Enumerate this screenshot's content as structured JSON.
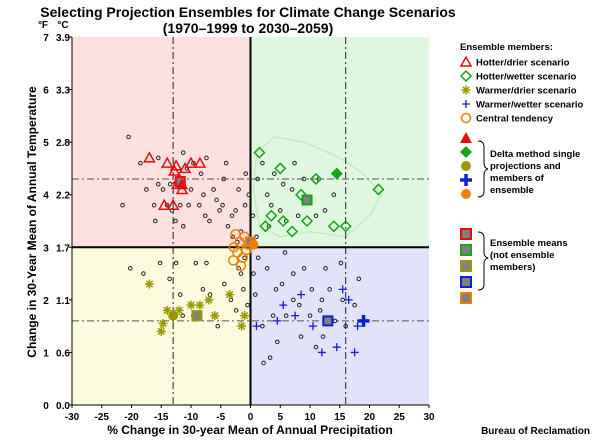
{
  "chart_data": {
    "type": "scatter",
    "title_line1": "Selecting Projection Ensembles for Climate Change Scenarios",
    "title_line2": "(1970–1999 to 2030–2059)",
    "xlabel": "% Change in 30-year Mean of Annual Precipitation",
    "ylabel": "Change in 30-Year Mean of Annual Temperature",
    "unit_f": "°F",
    "unit_c": "°C",
    "xlim": [
      -30,
      30
    ],
    "ylim_f": [
      0,
      7
    ],
    "ylim_c": [
      0.0,
      3.9
    ],
    "x_ticks": [
      -30,
      -25,
      -20,
      -15,
      -10,
      -5,
      0,
      5,
      10,
      15,
      20,
      25,
      30
    ],
    "y_ticks_f": [
      {
        "v": 0,
        "label": "0"
      },
      {
        "v": 1,
        "label": "1"
      },
      {
        "v": 2,
        "label": "2"
      },
      {
        "v": 3,
        "label": "3"
      },
      {
        "v": 4,
        "label": "4"
      },
      {
        "v": 5,
        "label": "5"
      },
      {
        "v": 6,
        "label": "6"
      },
      {
        "v": 7,
        "label": "7"
      }
    ],
    "y_ticks_c": [
      {
        "v": 0,
        "label": "0.0"
      },
      {
        "v": 1,
        "label": "0.6"
      },
      {
        "v": 2,
        "label": "1.1"
      },
      {
        "v": 3,
        "label": "1.7"
      },
      {
        "v": 4,
        "label": "2.2"
      },
      {
        "v": 5,
        "label": "2.8"
      },
      {
        "v": 6,
        "label": "3.3"
      },
      {
        "v": 7,
        "label": "3.9"
      }
    ],
    "center": {
      "x": 0,
      "y": 3
    },
    "percentile_lines": {
      "x": [
        -13,
        16
      ],
      "y": [
        1.6,
        4.3
      ]
    },
    "quadrant_colors": {
      "hotter_drier": "#fde0e0",
      "hotter_wetter": "#e0f7e0",
      "warmer_drier": "#fdfbde",
      "warmer_wetter": "#e2e2fb",
      "cloud_outline": "#bfeabf"
    },
    "legend": {
      "header": "Ensemble members:",
      "items": [
        {
          "label": "Hotter/drier scenario",
          "marker": "triangle-open",
          "color": "#e01010"
        },
        {
          "label": "Hotter/wetter scenario",
          "marker": "diamond-open",
          "color": "#18a418"
        },
        {
          "label": "Warmer/drier scenario",
          "marker": "star",
          "color": "#9a9a00"
        },
        {
          "label": "Warmer/wetter scenario",
          "marker": "plus",
          "color": "#1020d0"
        },
        {
          "label": "Central tendency",
          "marker": "circle-open",
          "color": "#f08000"
        }
      ],
      "delta_label_lines": [
        "Delta method single",
        "projections and",
        "members of",
        "ensemble"
      ],
      "means_label_lines": [
        "Ensemble means",
        "(not ensemble",
        " members)"
      ]
    },
    "background_points": [
      [
        -20.5,
        5.1
      ],
      [
        -18.5,
        4.6
      ],
      [
        -15.5,
        4.7
      ],
      [
        -17.5,
        4.1
      ],
      [
        -16.2,
        3.8
      ],
      [
        -16,
        3.5
      ],
      [
        -15.5,
        4.2
      ],
      [
        -14.7,
        4.1
      ],
      [
        -14,
        3.8
      ],
      [
        -13.5,
        4.2
      ],
      [
        -13.2,
        3.7
      ],
      [
        -12.6,
        3.5
      ],
      [
        -12.3,
        4.3
      ],
      [
        -11.3,
        4.8
      ],
      [
        -11.8,
        3.8
      ],
      [
        -11.3,
        3.4
      ],
      [
        -10.7,
        4.5
      ],
      [
        -10.4,
        3.8
      ],
      [
        -9.6,
        4.6
      ],
      [
        -10,
        4.1
      ],
      [
        -8.6,
        3.8
      ],
      [
        -8.3,
        4.4
      ],
      [
        -7.9,
        4.0
      ],
      [
        -7.4,
        4.7
      ],
      [
        -7.6,
        3.6
      ],
      [
        -6.9,
        3.5
      ],
      [
        -6.2,
        4.1
      ],
      [
        -5.7,
        3.9
      ],
      [
        -5.2,
        3.7
      ],
      [
        -4.7,
        3.8
      ],
      [
        -4.5,
        4.3
      ],
      [
        -4.1,
        4.6
      ],
      [
        -3.8,
        3.4
      ],
      [
        -3.1,
        3.6
      ],
      [
        -2.2,
        3.1
      ],
      [
        -2.5,
        3.7
      ],
      [
        -2.0,
        4.1
      ],
      [
        -1.6,
        3.3
      ],
      [
        -0.9,
        3.8
      ],
      [
        -0.3,
        4.0
      ],
      [
        -21.5,
        3.8
      ],
      [
        -20.2,
        2.6
      ],
      [
        -18.0,
        2.5
      ],
      [
        -15.2,
        2.7
      ],
      [
        -13.6,
        2.4
      ],
      [
        -12.5,
        2.7
      ],
      [
        -11.8,
        2.1
      ],
      [
        -11.4,
        1.7
      ],
      [
        -9.6,
        1.7
      ],
      [
        -9.2,
        2.7
      ],
      [
        -8.0,
        2.2
      ],
      [
        -7.4,
        2.7
      ],
      [
        -6.8,
        2.1
      ],
      [
        -5.5,
        1.5
      ],
      [
        -4.4,
        2.3
      ],
      [
        -3.3,
        2.0
      ],
      [
        -2.4,
        1.8
      ],
      [
        -1.6,
        2.5
      ],
      [
        -1.0,
        2.8
      ],
      [
        -2.0,
        2.6
      ],
      [
        -0.8,
        4.4
      ],
      [
        0.4,
        3.6
      ],
      [
        1.2,
        4.3
      ],
      [
        2.0,
        4.6
      ],
      [
        2.8,
        4.0
      ],
      [
        3.5,
        3.8
      ],
      [
        4.0,
        4.4
      ],
      [
        5.0,
        3.7
      ],
      [
        5.5,
        4.2
      ],
      [
        6.0,
        3.5
      ],
      [
        7.0,
        4.1
      ],
      [
        7.4,
        4.6
      ],
      [
        8.0,
        3.6
      ],
      [
        9.0,
        4.3
      ],
      [
        9.7,
        3.9
      ],
      [
        11.0,
        3.6
      ],
      [
        11.5,
        4.3
      ],
      [
        12.5,
        3.7
      ],
      [
        14.0,
        4.0
      ],
      [
        3.1,
        3.4
      ],
      [
        1.0,
        3.2
      ],
      [
        2.8,
        2.6
      ],
      [
        4.3,
        2.2
      ],
      [
        5.8,
        2.9
      ],
      [
        7.2,
        2.5
      ],
      [
        8.2,
        1.9
      ],
      [
        9.0,
        2.6
      ],
      [
        10.3,
        2.2
      ],
      [
        11.7,
        1.8
      ],
      [
        12.6,
        2.6
      ],
      [
        13.3,
        2.2
      ],
      [
        14.2,
        1.6
      ],
      [
        15.5,
        2.0
      ],
      [
        17.5,
        1.9
      ],
      [
        18.2,
        2.4
      ],
      [
        2.0,
        1.5
      ],
      [
        3.3,
        0.9
      ],
      [
        4.5,
        1.2
      ],
      [
        6.0,
        1.7
      ],
      [
        7.2,
        2.0
      ],
      [
        8.5,
        1.3
      ],
      [
        10.0,
        1.7
      ],
      [
        11.0,
        1.1
      ],
      [
        12.0,
        2.0
      ],
      [
        0.8,
        2.1
      ],
      [
        1.3,
        2.8
      ],
      [
        15.2,
        2.7
      ],
      [
        16.0,
        1.5
      ],
      [
        3.8,
        1.7
      ],
      [
        5.3,
        2.3
      ],
      [
        -0.5,
        1.9
      ],
      [
        0.5,
        2.5
      ],
      [
        -1.2,
        2.2
      ],
      [
        2.2,
        0.8
      ],
      [
        12.2,
        1.3
      ],
      [
        -3.0,
        3.2
      ]
    ],
    "central_tendency": [
      [
        -2.8,
        3.0
      ],
      [
        -2.2,
        2.9
      ],
      [
        -1.8,
        3.1
      ],
      [
        -1.3,
        2.8
      ],
      [
        -2.5,
        3.25
      ],
      [
        -1.0,
        3.2
      ],
      [
        -0.7,
        2.95
      ],
      [
        -2.9,
        2.75
      ],
      [
        -1.6,
        2.65
      ],
      [
        -0.4,
        3.05
      ]
    ],
    "hotter_drier": [
      [
        -17,
        4.7
      ],
      [
        -14,
        4.6
      ],
      [
        -12.5,
        4.55
      ],
      [
        -12,
        4.3
      ],
      [
        -11,
        4.5
      ],
      [
        -10,
        4.6
      ],
      [
        -8.5,
        4.6
      ],
      [
        -11.5,
        4.1
      ],
      [
        -13,
        3.8
      ],
      [
        -14.5,
        3.8
      ],
      [
        -12.3,
        4.2
      ],
      [
        -12.8,
        4.45
      ]
    ],
    "hotter_wetter": [
      [
        1.5,
        4.8
      ],
      [
        5,
        4.5
      ],
      [
        3.5,
        3.6
      ],
      [
        5.5,
        3.5
      ],
      [
        2.5,
        3.4
      ],
      [
        7,
        3.3
      ],
      [
        8.5,
        4
      ],
      [
        9.5,
        3.5
      ],
      [
        11,
        4.3
      ],
      [
        14,
        3.4
      ],
      [
        16,
        3.4
      ],
      [
        21.5,
        4.1
      ]
    ],
    "warmer_drier": [
      [
        -17,
        2.3
      ],
      [
        -15,
        1.4
      ],
      [
        -14,
        1.8
      ],
      [
        -12,
        1.8
      ],
      [
        -10,
        1.9
      ],
      [
        -8.5,
        1.9
      ],
      [
        -7,
        2
      ],
      [
        -6,
        1.7
      ],
      [
        -1,
        1.7
      ],
      [
        -1.5,
        1.5
      ],
      [
        -3.5,
        2.1
      ],
      [
        -14.7,
        1.55
      ]
    ],
    "warmer_wetter": [
      [
        1,
        1.5
      ],
      [
        5.5,
        1.9
      ],
      [
        7.5,
        1.7
      ],
      [
        8.5,
        2.1
      ],
      [
        12,
        1
      ],
      [
        15.5,
        2.2
      ],
      [
        16.5,
        2
      ],
      [
        17.5,
        1
      ],
      [
        18,
        1.5
      ],
      [
        14.5,
        1.1
      ],
      [
        10.5,
        1.5
      ],
      [
        4.5,
        1.6
      ]
    ],
    "delta_points": [
      {
        "group": "hotter_drier",
        "x": -11.5,
        "y": 4.2
      },
      {
        "group": "hotter_wetter",
        "x": 14.5,
        "y": 4.4
      },
      {
        "group": "warmer_drier",
        "x": -13,
        "y": 1.7
      },
      {
        "group": "warmer_wetter",
        "x": 19,
        "y": 1.6
      },
      {
        "group": "central_tendency",
        "x": 0.5,
        "y": 3.05
      }
    ],
    "ensemble_means": [
      {
        "group": "hotter_drier",
        "x": -11.8,
        "y": 4.25
      },
      {
        "group": "hotter_wetter",
        "x": 9.5,
        "y": 3.9
      },
      {
        "group": "warmer_drier",
        "x": -9,
        "y": 1.7
      },
      {
        "group": "warmer_wetter",
        "x": 13,
        "y": 1.6
      },
      {
        "group": "central_tendency",
        "x": 0,
        "y": 3.1
      }
    ]
  },
  "credit": "Bureau of Reclamation"
}
